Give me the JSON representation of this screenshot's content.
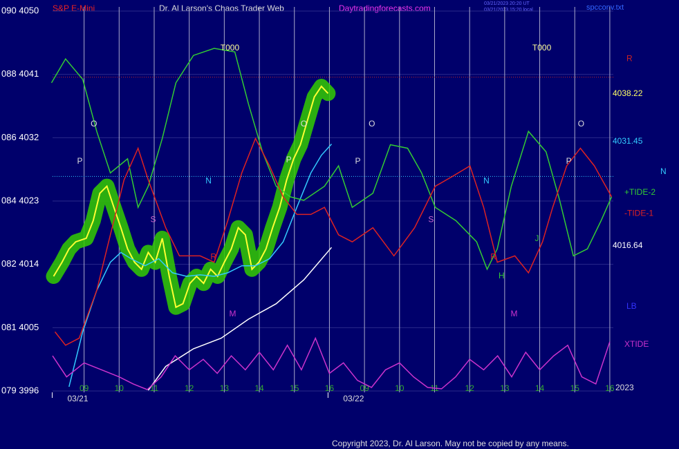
{
  "chart_data": {
    "type": "line",
    "title": "Dr. Al Larson's Chaos Trader Web",
    "symbol": "S&P E-Mini",
    "site": "Daytradingforecasts.com",
    "stamp": [
      "03/21/2023 20:20 UT",
      "03/21/2023 15:20 local"
    ],
    "file": "spcconv.txt",
    "copyright": "Copyright 2023, Dr. Al Larson. May not be copied by any means.",
    "year": "2023",
    "grid": true,
    "xlim": [
      -0.9,
      15.1
    ],
    "ylim": [
      3996,
      4050
    ],
    "yticks": [
      {
        "value": 4050,
        "label": "090 4050"
      },
      {
        "value": 4041,
        "label": "088 4041"
      },
      {
        "value": 4032,
        "label": "086 4032"
      },
      {
        "value": 4023,
        "label": "084 4023"
      },
      {
        "value": 4014,
        "label": "082 4014"
      },
      {
        "value": 4005,
        "label": "081 4005"
      },
      {
        "value": 3996,
        "label": "079 3996"
      }
    ],
    "xticks": [
      {
        "value": 0,
        "label": "09"
      },
      {
        "value": 1,
        "label": "10"
      },
      {
        "value": 2,
        "label": "11"
      },
      {
        "value": 3,
        "label": "12"
      },
      {
        "value": 4,
        "label": "13"
      },
      {
        "value": 5,
        "label": "14"
      },
      {
        "value": 6,
        "label": "15"
      },
      {
        "value": 7,
        "label": "16"
      },
      {
        "value": 8,
        "label": "09"
      },
      {
        "value": 9,
        "label": "10"
      },
      {
        "value": 10,
        "label": "11"
      },
      {
        "value": 11,
        "label": "12"
      },
      {
        "value": 12,
        "label": "13"
      },
      {
        "value": 13,
        "label": "14"
      },
      {
        "value": 14,
        "label": "15"
      },
      {
        "value": 15,
        "label": "16"
      }
    ],
    "dates": [
      {
        "value": -0.18,
        "label": "03/21"
      },
      {
        "value": 7.69,
        "label": "03/22"
      }
    ],
    "levels": [
      {
        "value": 4038.22,
        "color": "#ffff66"
      },
      {
        "value": 4031.45,
        "color": "#33ccff"
      },
      {
        "value": 4016.64,
        "color": "#ffffff"
      }
    ],
    "hlines": [
      {
        "value": 4026.5,
        "color": "#33ccff"
      },
      {
        "value": 4040.6,
        "color": "#cc2222"
      }
    ],
    "side_labels": [
      {
        "text": "R",
        "value": 4043.2,
        "color": "#cc2222"
      },
      {
        "text": "N",
        "value": 4027.6,
        "color": "#33ccff"
      },
      {
        "text": "LB",
        "value": 4008.0,
        "color": "#3333ff"
      }
    ],
    "series": [
      {
        "color": "#ffff33",
        "halo": "#33cc00",
        "x": [
          -0.87,
          -0.63,
          -0.43,
          -0.24,
          0.06,
          0.26,
          0.45,
          0.65,
          0.85,
          1.05,
          1.24,
          1.44,
          1.64,
          1.83,
          2.03,
          2.23,
          2.43,
          2.62,
          2.82,
          3.02,
          3.21,
          3.41,
          3.61,
          3.81,
          4.0,
          4.2,
          4.4,
          4.6,
          4.79,
          4.99,
          5.19,
          5.38,
          5.58,
          5.78,
          5.98,
          6.17,
          6.37,
          6.57,
          6.77,
          6.96
        ],
        "values": [
          4012.3,
          4014.3,
          4016.2,
          4017.2,
          4017.7,
          4020.2,
          4024.1,
          4025.1,
          4022.1,
          4019.2,
          4016.2,
          4014.3,
          4013.3,
          4015.7,
          4014.3,
          4017.7,
          4012.3,
          4007.9,
          4008.4,
          4011.3,
          4012.3,
          4011.3,
          4013.3,
          4012.3,
          4014.3,
          4016.2,
          4019.2,
          4018.2,
          4013.3,
          4014.3,
          4016.2,
          4019.2,
          4022.1,
          4026.0,
          4029.0,
          4031.0,
          4034.4,
          4037.8,
          4039.3,
          4038.3
        ]
      },
      {
        "color": "#33ccff",
        "x": [
          -0.43,
          -0.04,
          0.36,
          0.75,
          1.05,
          1.34,
          1.74,
          2.13,
          2.52,
          2.92,
          3.31,
          3.71,
          4.1,
          4.5,
          4.89,
          5.29,
          5.68,
          6.07,
          6.47,
          6.77,
          7.06
        ],
        "values": [
          3996.6,
          4004.4,
          4010.3,
          4014.3,
          4015.7,
          4014.8,
          4013.8,
          4014.8,
          4012.8,
          4012.3,
          4012.5,
          4012.3,
          4012.8,
          4013.8,
          4013.8,
          4014.8,
          4017.2,
          4022.1,
          4027.0,
          4029.5,
          4031.1
        ]
      },
      {
        "color": "#ffffff",
        "x": [
          1.83,
          2.33,
          3.12,
          3.91,
          4.69,
          5.48,
          6.27,
          7.06
        ],
        "values": [
          3996.1,
          3999.5,
          4002.0,
          4003.5,
          4006.2,
          4008.4,
          4011.8,
          4016.4
        ]
      },
      {
        "name": "+TIDE-2",
        "color": "#33cc33",
        "x": [
          -0.93,
          -0.53,
          -0.04,
          0.36,
          0.75,
          1.24,
          1.54,
          1.83,
          2.23,
          2.62,
          3.12,
          3.71,
          4.3,
          4.69,
          5.09,
          5.48,
          5.88,
          6.27,
          6.86,
          7.26,
          7.65,
          8.24,
          8.74,
          9.23,
          9.63,
          10.02,
          10.61,
          11.2,
          11.5,
          11.79,
          12.19,
          12.68,
          13.18,
          13.57,
          13.96,
          14.36,
          14.75,
          15.05
        ],
        "values": [
          4039.8,
          4043.2,
          4040.3,
          4032.9,
          4027.0,
          4029.0,
          4022.1,
          4025.1,
          4031.9,
          4039.8,
          4043.7,
          4044.7,
          4044.2,
          4036.8,
          4030.0,
          4025.1,
          4023.6,
          4023.1,
          4025.1,
          4028.0,
          4022.1,
          4024.1,
          4031.0,
          4030.5,
          4027.0,
          4022.1,
          4020.2,
          4017.2,
          4013.3,
          4016.2,
          4025.1,
          4032.9,
          4030.0,
          4023.1,
          4015.2,
          4016.2,
          4020.2,
          4023.6
        ]
      },
      {
        "name": "-TIDE-1",
        "color": "#dd2222",
        "x": [
          -0.83,
          -0.53,
          -0.14,
          0.36,
          0.75,
          1.14,
          1.54,
          1.83,
          2.33,
          2.72,
          3.31,
          3.71,
          4.1,
          4.5,
          4.89,
          5.29,
          5.68,
          6.07,
          6.47,
          6.86,
          7.26,
          7.65,
          8.24,
          8.84,
          9.43,
          10.02,
          10.51,
          11.01,
          11.4,
          11.79,
          12.29,
          12.68,
          13.08,
          13.37,
          13.77,
          14.16,
          14.56,
          15.05
        ],
        "values": [
          4004.4,
          4002.5,
          4003.5,
          4010.3,
          4018.2,
          4026.0,
          4030.5,
          4026.0,
          4019.2,
          4015.2,
          4015.2,
          4014.3,
          4020.2,
          4027.0,
          4031.9,
          4028.0,
          4023.6,
          4021.1,
          4021.1,
          4022.1,
          4018.2,
          4017.2,
          4019.2,
          4015.2,
          4019.2,
          4025.1,
          4026.5,
          4028.0,
          4022.1,
          4014.3,
          4015.2,
          4012.8,
          4017.2,
          4022.1,
          4028.0,
          4030.5,
          4028.0,
          4023.6
        ]
      },
      {
        "name": "XTIDE",
        "color": "#cc33cc",
        "x": [
          -0.9,
          -0.5,
          0,
          0.5,
          1,
          1.4,
          1.8,
          2.2,
          2.6,
          3,
          3.4,
          3.8,
          4.2,
          4.6,
          5,
          5.4,
          5.8,
          6.2,
          6.6,
          7,
          7.4,
          7.8,
          8.2,
          8.6,
          9,
          9.4,
          9.8,
          10.2,
          10.6,
          11,
          11.4,
          11.8,
          12.2,
          12.6,
          13,
          13.4,
          13.8,
          14.2,
          14.6,
          15
        ],
        "values": [
          4001,
          3998,
          4000,
          3999,
          3998,
          3997,
          3996.2,
          3998,
          4001,
          3999,
          4000.5,
          3998.5,
          4001,
          3999,
          4001.5,
          3999,
          4002.5,
          3999,
          4003.5,
          3998.5,
          4000,
          3997.5,
          3996.5,
          3999,
          4000,
          3998,
          3996.5,
          3996.3,
          3998,
          4000.5,
          3999,
          4001,
          3998,
          4001.5,
          3999,
          4001,
          4002.5,
          3998,
          3997,
          4003
        ]
      }
    ],
    "annotations": [
      {
        "text": "O",
        "x": 0.28,
        "y": 4033.9,
        "color": "#dddddd"
      },
      {
        "text": "P",
        "x": -0.12,
        "y": 4028.6,
        "color": "#dddddd"
      },
      {
        "text": "N",
        "x": 3.55,
        "y": 4025.8,
        "color": "#33ccff"
      },
      {
        "text": "S",
        "x": 1.97,
        "y": 4020.3,
        "color": "#cc66cc"
      },
      {
        "text": "R",
        "x": 3.69,
        "y": 4015.0,
        "color": "#dd2222"
      },
      {
        "text": "M",
        "x": 4.24,
        "y": 4006.9,
        "color": "#cc33cc"
      },
      {
        "text": "T000",
        "x": 4.16,
        "y": 4044.7,
        "color": "#ffff99"
      },
      {
        "text": "O",
        "x": 6.27,
        "y": 4033.9,
        "color": "#dddddd"
      },
      {
        "text": "P",
        "x": 5.84,
        "y": 4028.8,
        "color": "#dddddd"
      },
      {
        "text": "O",
        "x": 8.21,
        "y": 4033.9,
        "color": "#dddddd"
      },
      {
        "text": "P",
        "x": 7.81,
        "y": 4028.6,
        "color": "#dddddd"
      },
      {
        "text": "S",
        "x": 9.9,
        "y": 4020.3,
        "color": "#cc66cc"
      },
      {
        "text": "N",
        "x": 11.48,
        "y": 4025.8,
        "color": "#33ccff"
      },
      {
        "text": "R",
        "x": 11.68,
        "y": 4015.0,
        "color": "#dd2222"
      },
      {
        "text": "H",
        "x": 11.91,
        "y": 4012.3,
        "color": "#33cc33"
      },
      {
        "text": "M",
        "x": 12.27,
        "y": 4006.9,
        "color": "#cc33cc"
      },
      {
        "text": "J",
        "x": 12.92,
        "y": 4017.6,
        "color": "#33cc33"
      },
      {
        "text": "T000",
        "x": 13.06,
        "y": 4044.7,
        "color": "#ffff99"
      },
      {
        "text": "O",
        "x": 14.18,
        "y": 4033.9,
        "color": "#dddddd"
      },
      {
        "text": "P",
        "x": 13.83,
        "y": 4028.6,
        "color": "#dddddd"
      }
    ]
  }
}
